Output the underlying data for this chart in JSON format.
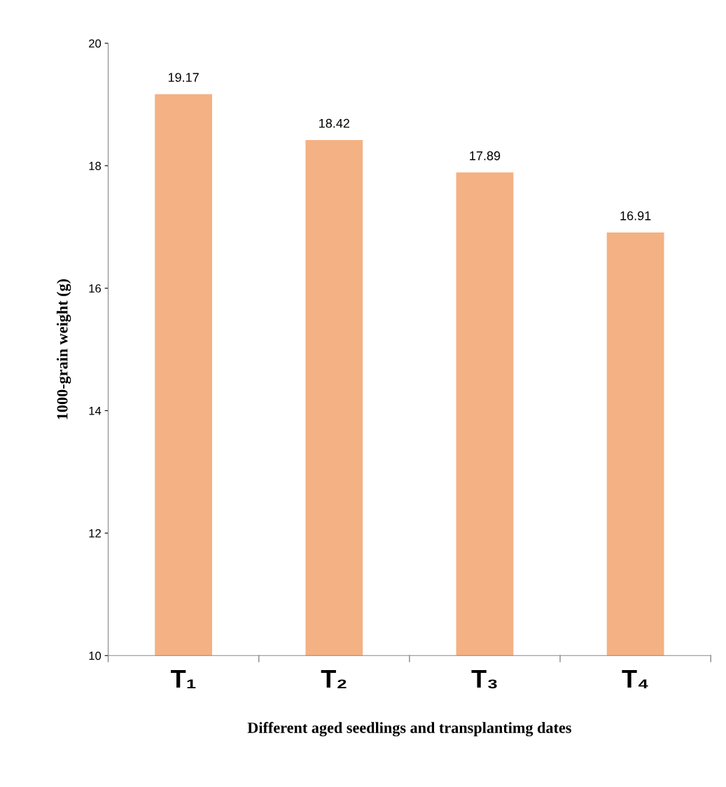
{
  "chart_data": {
    "type": "bar",
    "xlabel": "Different aged seedlings and transplantimg dates",
    "ylabel": "1000-grain weight (g)",
    "categories": [
      "T₁",
      "T₂",
      "T₃",
      "T₄"
    ],
    "values": [
      19.17,
      18.42,
      17.89,
      16.91
    ],
    "color": "#f4b183",
    "ylim": [
      10,
      20
    ],
    "yticks": [
      10,
      12,
      14,
      16,
      18,
      20
    ],
    "data_labels": true,
    "grid": false
  }
}
